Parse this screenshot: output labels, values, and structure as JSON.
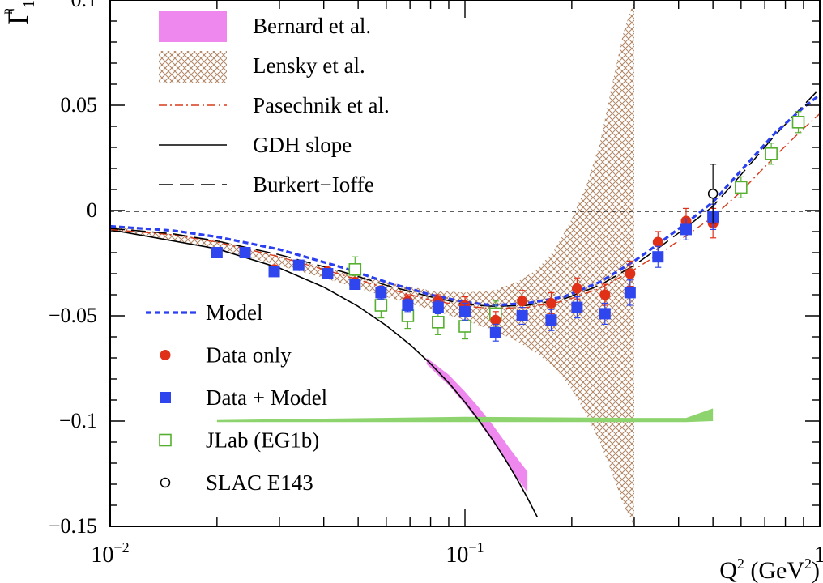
{
  "chart_data": {
    "type": "scatter",
    "title": "",
    "xlabel": "Q² (GeV²)",
    "ylabel": "Γ₁",
    "ylabel_superscript": "p",
    "xscale": "log",
    "xlim": [
      0.01,
      1.0
    ],
    "ylim": [
      -0.15,
      0.1
    ],
    "grid": false,
    "legend_position": "top-left and middle-left",
    "x_ticks": [
      {
        "value": 0.01,
        "base": "10",
        "exp": "−2"
      },
      {
        "value": 0.1,
        "base": "10",
        "exp": "−1"
      },
      {
        "value": 1.0,
        "base": "1",
        "exp": ""
      }
    ],
    "y_ticks": [
      {
        "value": 0.1,
        "label": "0.1"
      },
      {
        "value": 0.05,
        "label": "0.05"
      },
      {
        "value": 0,
        "label": "0"
      },
      {
        "value": -0.05,
        "label": "−0.05"
      },
      {
        "value": -0.1,
        "label": "−0.1"
      },
      {
        "value": -0.15,
        "label": "−0.15"
      }
    ],
    "legend_top": [
      {
        "key": "bernard",
        "label": "Bernard et al."
      },
      {
        "key": "lensky",
        "label": "Lensky et al."
      },
      {
        "key": "pasechnik",
        "label": "Pasechnik et al."
      },
      {
        "key": "gdh",
        "label": "GDH slope"
      },
      {
        "key": "burkert",
        "label": "Burkert−Ioffe"
      }
    ],
    "legend_bottom": [
      {
        "key": "model",
        "label": "Model"
      },
      {
        "key": "data_only",
        "label": "Data only"
      },
      {
        "key": "data_model",
        "label": "Data + Model"
      },
      {
        "key": "jlab",
        "label": "JLab (EG1b)"
      },
      {
        "key": "slac",
        "label": "SLAC E143"
      }
    ],
    "colors": {
      "model": "#2a3ff0",
      "data_only": "#e03018",
      "data_model": "#2f45ee",
      "jlab": "#55b030",
      "slac": "#000000",
      "bernard": "#ee88ee",
      "lensky": "#b08462",
      "pasechnik": "#d83a1c",
      "systematic_band": "#8ed46e"
    },
    "series": [
      {
        "name": "Model",
        "style": "dashed",
        "x": [
          0.01,
          0.015,
          0.02,
          0.03,
          0.045,
          0.06,
          0.08,
          0.1,
          0.12,
          0.15,
          0.19,
          0.24,
          0.3,
          0.35,
          0.42,
          0.5,
          0.6,
          0.75,
          0.9,
          1.0
        ],
        "y": [
          -0.0075,
          -0.0095,
          -0.0125,
          -0.0185,
          -0.027,
          -0.034,
          -0.04,
          -0.0435,
          -0.045,
          -0.044,
          -0.041,
          -0.034,
          -0.024,
          -0.016,
          -0.006,
          0.004,
          0.019,
          0.037,
          0.049,
          0.055
        ]
      },
      {
        "name": "Burkert−Ioffe",
        "style": "longdash",
        "x": [
          0.01,
          0.015,
          0.02,
          0.03,
          0.045,
          0.06,
          0.08,
          0.1,
          0.12,
          0.15,
          0.19,
          0.24,
          0.3,
          0.35,
          0.42,
          0.5,
          0.6,
          0.75,
          0.9,
          1.0
        ],
        "y": [
          -0.0085,
          -0.011,
          -0.0145,
          -0.021,
          -0.029,
          -0.0355,
          -0.041,
          -0.0445,
          -0.0455,
          -0.045,
          -0.042,
          -0.0355,
          -0.026,
          -0.018,
          -0.008,
          0.002,
          0.017,
          0.036,
          0.05,
          0.058
        ]
      },
      {
        "name": "Pasechnik et al.",
        "style": "dashdot",
        "x": [
          0.01,
          0.015,
          0.02,
          0.03,
          0.045,
          0.06,
          0.08,
          0.1,
          0.12,
          0.15,
          0.19,
          0.24,
          0.3,
          0.35,
          0.42,
          0.5,
          0.6,
          0.75,
          0.9,
          1.0
        ],
        "y": [
          -0.009,
          -0.0115,
          -0.015,
          -0.022,
          -0.0305,
          -0.037,
          -0.0425,
          -0.0455,
          -0.0465,
          -0.046,
          -0.043,
          -0.037,
          -0.028,
          -0.021,
          -0.012,
          -0.003,
          0.009,
          0.026,
          0.039,
          0.046
        ]
      },
      {
        "name": "GDH slope",
        "style": "solid",
        "x": [
          0.01,
          0.02,
          0.03,
          0.04,
          0.05,
          0.06,
          0.07,
          0.08,
          0.09,
          0.1,
          0.11,
          0.12,
          0.13,
          0.14,
          0.15,
          0.16
        ],
        "y": [
          -0.0091,
          -0.0182,
          -0.0273,
          -0.0364,
          -0.0455,
          -0.0546,
          -0.0637,
          -0.0728,
          -0.0819,
          -0.091,
          -0.1001,
          -0.1092,
          -0.1183,
          -0.1274,
          -0.1365,
          -0.1456
        ]
      },
      {
        "name": "Lensky et al.",
        "style": "band",
        "x": [
          0.01,
          0.02,
          0.04,
          0.06,
          0.08,
          0.1,
          0.12,
          0.14,
          0.16,
          0.18,
          0.2,
          0.22,
          0.24,
          0.26,
          0.28,
          0.3
        ],
        "upper": [
          -0.0075,
          -0.014,
          -0.027,
          -0.034,
          -0.038,
          -0.039,
          -0.038,
          -0.034,
          -0.028,
          -0.018,
          -0.004,
          0.012,
          0.032,
          0.06,
          0.085,
          0.1
        ],
        "lower": [
          -0.0095,
          -0.018,
          -0.032,
          -0.041,
          -0.047,
          -0.052,
          -0.057,
          -0.062,
          -0.068,
          -0.075,
          -0.085,
          -0.097,
          -0.11,
          -0.125,
          -0.14,
          -0.15
        ]
      },
      {
        "name": "Bernard et al.",
        "style": "band",
        "x": [
          0.078,
          0.09,
          0.1,
          0.11,
          0.12,
          0.135,
          0.15
        ],
        "upper": [
          -0.07,
          -0.078,
          -0.086,
          -0.094,
          -0.102,
          -0.114,
          -0.124
        ],
        "lower": [
          -0.073,
          -0.083,
          -0.092,
          -0.101,
          -0.11,
          -0.123,
          -0.134
        ]
      },
      {
        "name": "Systematic band",
        "style": "band",
        "x": [
          0.02,
          0.1,
          0.3,
          0.42,
          0.5
        ],
        "upper": [
          -0.0995,
          -0.098,
          -0.0985,
          -0.0985,
          -0.094
        ],
        "lower": [
          -0.1005,
          -0.1005,
          -0.1005,
          -0.1005,
          -0.1
        ]
      },
      {
        "name": "Data only",
        "marker": "filled-circle",
        "x": [
          0.02,
          0.024,
          0.029,
          0.034,
          0.041,
          0.049,
          0.058,
          0.069,
          0.084,
          0.1,
          0.122,
          0.145,
          0.175,
          0.207,
          0.248,
          0.292,
          0.35,
          0.42,
          0.5
        ],
        "y": [
          -0.02,
          -0.02,
          -0.028,
          -0.026,
          -0.029,
          -0.034,
          -0.038,
          -0.043,
          -0.043,
          -0.045,
          -0.052,
          -0.043,
          -0.044,
          -0.037,
          -0.04,
          -0.03,
          -0.015,
          -0.005,
          -0.006
        ],
        "err": [
          0.002,
          0.002,
          0.002,
          0.002,
          0.002,
          0.002,
          0.002,
          0.003,
          0.003,
          0.004,
          0.004,
          0.005,
          0.005,
          0.005,
          0.005,
          0.006,
          0.005,
          0.006,
          0.007
        ]
      },
      {
        "name": "Data + Model",
        "marker": "filled-square",
        "x": [
          0.02,
          0.024,
          0.029,
          0.034,
          0.041,
          0.049,
          0.058,
          0.069,
          0.084,
          0.1,
          0.122,
          0.145,
          0.175,
          0.207,
          0.248,
          0.292,
          0.35,
          0.42,
          0.5
        ],
        "y": [
          -0.02,
          -0.02,
          -0.029,
          -0.026,
          -0.03,
          -0.035,
          -0.039,
          -0.045,
          -0.046,
          -0.048,
          -0.058,
          -0.05,
          -0.052,
          -0.046,
          -0.049,
          -0.039,
          -0.022,
          -0.009,
          -0.003
        ],
        "err": [
          0.002,
          0.002,
          0.002,
          0.002,
          0.002,
          0.002,
          0.003,
          0.003,
          0.003,
          0.004,
          0.004,
          0.004,
          0.005,
          0.005,
          0.005,
          0.006,
          0.005,
          0.005,
          0.006
        ]
      },
      {
        "name": "JLab (EG1b)",
        "marker": "open-square",
        "x": [
          0.049,
          0.058,
          0.069,
          0.084,
          0.1,
          0.122,
          0.6,
          0.73,
          0.87
        ],
        "y": [
          -0.028,
          -0.045,
          -0.05,
          -0.053,
          -0.055,
          -0.049,
          0.011,
          0.027,
          0.042
        ],
        "err": [
          0.006,
          0.006,
          0.006,
          0.006,
          0.006,
          0.006,
          0.005,
          0.005,
          0.005
        ]
      },
      {
        "name": "SLAC E143",
        "marker": "open-circle",
        "x": [
          0.5
        ],
        "y": [
          0.008
        ],
        "err": [
          0.014
        ]
      }
    ]
  }
}
